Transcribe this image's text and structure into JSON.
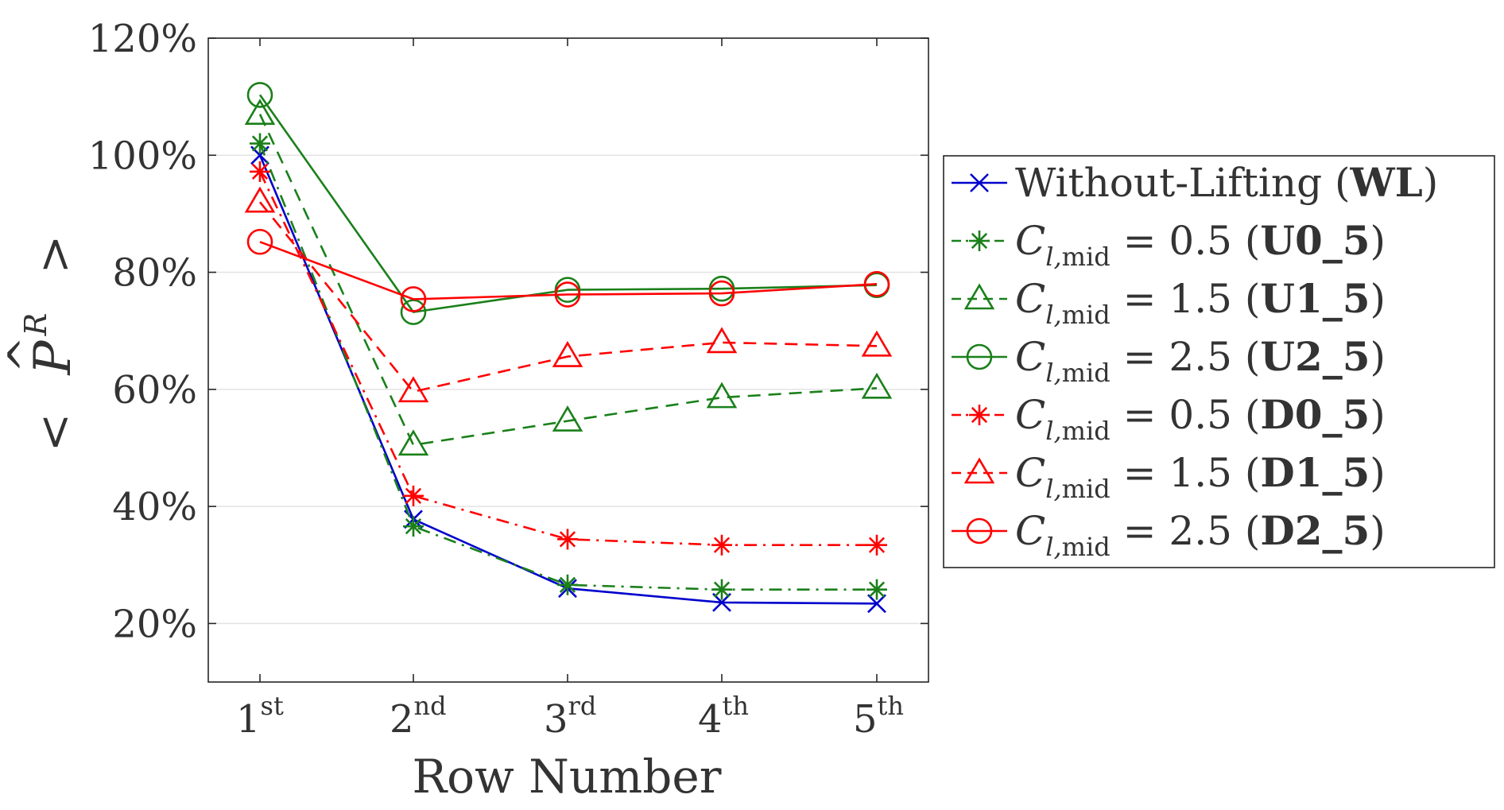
{
  "chart_data": {
    "type": "line",
    "title": "",
    "xlabel": "Row Number",
    "ylabel": "< P̂^R >",
    "ylabel_parts": {
      "lt": "<",
      "P": "P",
      "hat": "^",
      "sup": "R",
      "gt": ">"
    },
    "x_tick_labels": [
      {
        "base": "1",
        "sup": "st"
      },
      {
        "base": "2",
        "sup": "nd"
      },
      {
        "base": "3",
        "sup": "rd"
      },
      {
        "base": "4",
        "sup": "th"
      },
      {
        "base": "5",
        "sup": "th"
      }
    ],
    "categories": [
      "1st",
      "2nd",
      "3rd",
      "4th",
      "5th"
    ],
    "ylim": [
      10,
      120
    ],
    "yticks": [
      20,
      40,
      60,
      80,
      100,
      120
    ],
    "ytick_suffix": "%",
    "grid": "horizontal",
    "legend_position": "right",
    "series": [
      {
        "name": "Without-Lifting (WL)",
        "legend_plain": "Without-Lifting (",
        "legend_bold": "WL",
        "color": "#0000cc",
        "dash": "solid",
        "marker": "x",
        "values": [
          100,
          37.8,
          26.0,
          23.6,
          23.4
        ]
      },
      {
        "name": "C_l,mid = 0.5 (U0_5)",
        "cl_value": "0.5",
        "legend_bold": "U0_5",
        "color": "#1a801a",
        "dash": "dashdot",
        "marker": "asterisk",
        "values": [
          102,
          36.6,
          26.6,
          25.8,
          25.8
        ]
      },
      {
        "name": "C_l,mid = 1.5 (U1_5)",
        "cl_value": "1.5",
        "legend_bold": "U1_5",
        "color": "#1a801a",
        "dash": "dashed",
        "marker": "triangle",
        "values": [
          107,
          50.5,
          54.6,
          58.6,
          60.2
        ]
      },
      {
        "name": "C_l,mid = 2.5 (U2_5)",
        "cl_value": "2.5",
        "legend_bold": "U2_5",
        "color": "#1a801a",
        "dash": "solid",
        "marker": "circle",
        "values": [
          110.3,
          73.2,
          77.0,
          77.2,
          77.8
        ]
      },
      {
        "name": "C_l,mid = 0.5 (D0_5)",
        "cl_value": "0.5",
        "legend_bold": "D0_5",
        "color": "#ff0000",
        "dash": "dashdot",
        "marker": "asterisk",
        "values": [
          97.2,
          41.8,
          34.4,
          33.4,
          33.4
        ]
      },
      {
        "name": "C_l,mid = 1.5 (D1_5)",
        "cl_value": "1.5",
        "legend_bold": "D1_5",
        "color": "#ff0000",
        "dash": "dashed",
        "marker": "triangle",
        "values": [
          92.0,
          59.6,
          65.6,
          68.0,
          67.4
        ]
      },
      {
        "name": "C_l,mid = 2.5 (D2_5)",
        "cl_value": "2.5",
        "legend_bold": "D2_5",
        "color": "#ff0000",
        "dash": "solid",
        "marker": "circle",
        "values": [
          85.2,
          75.4,
          76.2,
          76.4,
          78.0
        ]
      }
    ]
  }
}
